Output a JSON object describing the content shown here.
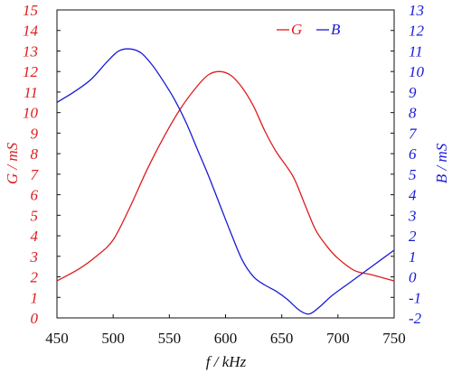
{
  "chart_data": {
    "type": "line",
    "xlabel": "f / kHz",
    "xlim": [
      450,
      750
    ],
    "xticks": [
      "450",
      "500",
      "550",
      "600",
      "650",
      "700",
      "750"
    ],
    "ylabel_left": "G / mS",
    "ylim_left": [
      0,
      15
    ],
    "yticks_left": [
      "0",
      "1",
      "2",
      "3",
      "4",
      "5",
      "6",
      "7",
      "8",
      "9",
      "10",
      "11",
      "12",
      "13",
      "14",
      "15"
    ],
    "ylabel_right": "B / mS",
    "ylim_right": [
      -2,
      13
    ],
    "yticks_right": [
      "-2",
      "-1",
      "0",
      "1",
      "2",
      "3",
      "4",
      "5",
      "6",
      "7",
      "8",
      "9",
      "10",
      "11",
      "12",
      "13"
    ],
    "grid": false,
    "legend_position": "top-right",
    "series": [
      {
        "name": "G",
        "axis": "left",
        "color": "#dd1c1c",
        "x": [
          450,
          470,
          485,
          500,
          515,
          530,
          545,
          560,
          575,
          585,
          595,
          605,
          615,
          625,
          635,
          645,
          660,
          670,
          680,
          690,
          700,
          715,
          730,
          750
        ],
        "y": [
          1.8,
          2.4,
          3.0,
          3.8,
          5.4,
          7.2,
          8.8,
          10.2,
          11.3,
          11.85,
          12.0,
          11.8,
          11.2,
          10.3,
          9.1,
          8.1,
          6.9,
          5.6,
          4.3,
          3.5,
          2.9,
          2.3,
          2.1,
          1.8
        ]
      },
      {
        "name": "B",
        "axis": "right",
        "color": "#1a1ad6",
        "x": [
          450,
          465,
          480,
          495,
          505,
          515,
          525,
          535,
          545,
          555,
          565,
          575,
          585,
          595,
          605,
          615,
          625,
          635,
          645,
          655,
          665,
          672,
          677,
          685,
          695,
          710,
          725,
          740,
          750
        ],
        "y": [
          8.5,
          9.0,
          9.6,
          10.5,
          11.0,
          11.1,
          10.9,
          10.3,
          9.5,
          8.6,
          7.5,
          6.2,
          4.9,
          3.5,
          2.1,
          0.8,
          0.0,
          -0.4,
          -0.7,
          -1.1,
          -1.6,
          -1.8,
          -1.75,
          -1.4,
          -0.9,
          -0.3,
          0.3,
          0.9,
          1.3
        ]
      }
    ]
  }
}
